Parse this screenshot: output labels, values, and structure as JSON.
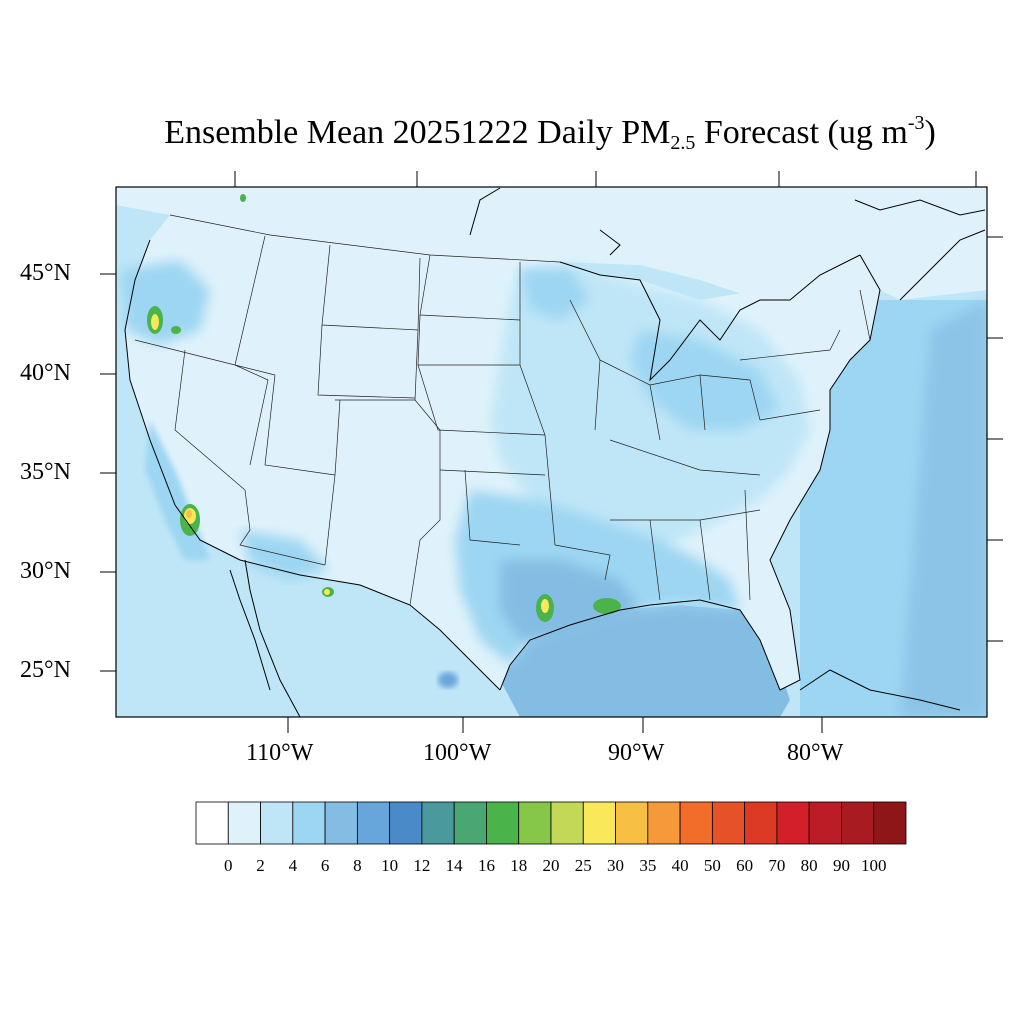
{
  "title": {
    "prefix": "Ensemble Mean 20251222 Daily PM",
    "sub": "2.5",
    "mid": " Forecast (ug m",
    "sup": "-3",
    "suffix": ")"
  },
  "lat_labels": [
    "45°N",
    "40°N",
    "35°N",
    "30°N",
    "25°N"
  ],
  "lon_labels": [
    "110°W",
    "100°W",
    "90°W",
    "80°W"
  ],
  "colorbar": {
    "labels": [
      "0",
      "2",
      "4",
      "6",
      "8",
      "10",
      "12",
      "14",
      "16",
      "18",
      "20",
      "25",
      "30",
      "35",
      "40",
      "50",
      "60",
      "70",
      "80",
      "90",
      "100"
    ],
    "colors": [
      "#ffffff",
      "#dff2fb",
      "#bfe6f7",
      "#9dd6f2",
      "#84bde3",
      "#67a6db",
      "#4a8ac9",
      "#4a999c",
      "#4aa673",
      "#4ab34a",
      "#86c74a",
      "#c4d858",
      "#f8e85a",
      "#f7c044",
      "#f5993a",
      "#f26c2a",
      "#e65128",
      "#dd3a26",
      "#d21f29",
      "#bb1c26",
      "#a71b21",
      "#8e1619"
    ]
  },
  "map_colors": {
    "ocean_pacific": "#bfe6f7",
    "ocean_atlantic": "#9dd6f2",
    "gulf": "#84bde3",
    "land_low": "#dff2fb",
    "land_mid": "#bfe6f7",
    "land_high": "#9dd6f2",
    "land_higher": "#84bde3",
    "hotspot_green": "#4ab34a",
    "hotspot_yellow": "#f8e85a",
    "hotspot_orange": "#f7c044"
  }
}
